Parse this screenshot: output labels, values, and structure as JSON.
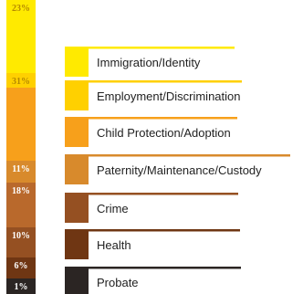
{
  "chart_data": {
    "type": "bar",
    "orientation": "vertical-stacked",
    "series": [
      {
        "label": "Immigration/Identity",
        "percent_label": "23%",
        "value": 23,
        "color": "#FFEA00",
        "text_color": "#B58A00"
      },
      {
        "label": "Employment/Discrimination",
        "percent_label": "31%",
        "value": 31,
        "color": "#FFD000",
        "text_color": "#B58A00"
      },
      {
        "label": "Child Protection/Adoption",
        "percent_label": "",
        "value": null,
        "color": "#F7A01B",
        "text_color": "#ffffff"
      },
      {
        "label": "Paternity/Maintenance/Custody",
        "percent_label": "11%",
        "value": 11,
        "color": "#D88A2C",
        "text_color": "#ffffff"
      },
      {
        "label": "Crime",
        "percent_label": "18%",
        "value": 18,
        "color": "#B9692C",
        "text_color": "#ffffff"
      },
      {
        "label": "Health",
        "percent_label": "10%",
        "value": 10,
        "color": "#955022",
        "text_color": "#ffffff"
      },
      {
        "label": "",
        "percent_label": "6%",
        "value": 6,
        "color": "#6F3613",
        "text_color": "#ffffff"
      },
      {
        "label": "Probate",
        "percent_label": "1%",
        "value": 1,
        "color": "#2B2523",
        "text_color": "#ffffff"
      }
    ],
    "legend_placement": "right"
  }
}
